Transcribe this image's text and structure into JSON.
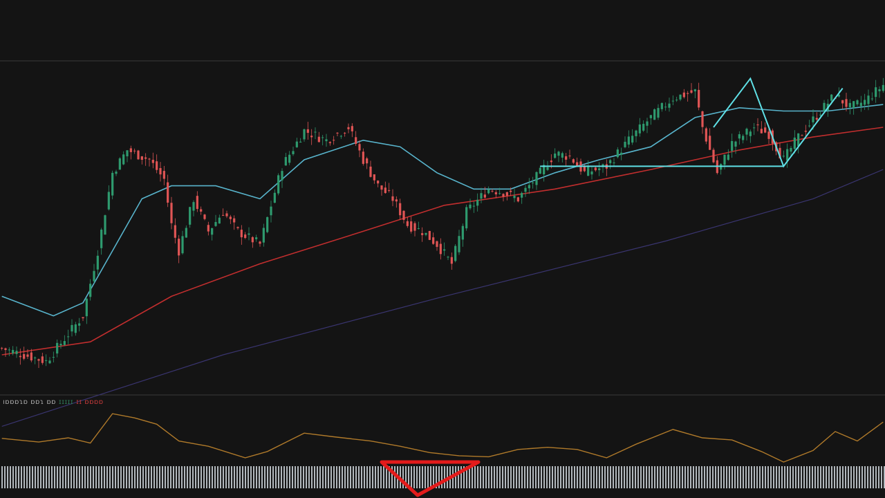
{
  "colors": {
    "background": "#141414",
    "up": "#2e9a6e",
    "down": "#e05555",
    "ma_fast": "#58b4cc",
    "ma_mid": "#c22e2e",
    "ma_slow": "#3a3570",
    "pattern": "#5fe0e6",
    "oscillator": "#b07a2a",
    "divider": "#3a3a3a",
    "volume_bars": "#cfd6dc",
    "marker": "#e31b1b"
  },
  "indicator_legend": {
    "text": "ıɒɒɒɿɒ ɒɒɿ ɒɒ",
    "green_text": "ɪɪɪɪɪ",
    "red_text": "ɪɪ ɒɒɒɒ"
  },
  "chart_data": [
    {
      "type": "candlestick",
      "title": "",
      "xlabel": "",
      "ylabel": "",
      "grid": false,
      "ylim": [
        0,
        100
      ],
      "x_count": 240,
      "price_path": [
        {
          "x": 0,
          "y": 12
        },
        {
          "x": 12,
          "y": 8
        },
        {
          "x": 22,
          "y": 22
        },
        {
          "x": 26,
          "y": 42
        },
        {
          "x": 30,
          "y": 66
        },
        {
          "x": 34,
          "y": 73
        },
        {
          "x": 40,
          "y": 70
        },
        {
          "x": 44,
          "y": 64
        },
        {
          "x": 46,
          "y": 50
        },
        {
          "x": 48,
          "y": 42
        },
        {
          "x": 52,
          "y": 58
        },
        {
          "x": 56,
          "y": 48
        },
        {
          "x": 60,
          "y": 54
        },
        {
          "x": 64,
          "y": 48
        },
        {
          "x": 70,
          "y": 44
        },
        {
          "x": 76,
          "y": 68
        },
        {
          "x": 82,
          "y": 79
        },
        {
          "x": 88,
          "y": 76
        },
        {
          "x": 94,
          "y": 80
        },
        {
          "x": 98,
          "y": 70
        },
        {
          "x": 102,
          "y": 62
        },
        {
          "x": 106,
          "y": 58
        },
        {
          "x": 110,
          "y": 50
        },
        {
          "x": 114,
          "y": 48
        },
        {
          "x": 118,
          "y": 44
        },
        {
          "x": 122,
          "y": 38
        },
        {
          "x": 126,
          "y": 54
        },
        {
          "x": 132,
          "y": 61
        },
        {
          "x": 136,
          "y": 60
        },
        {
          "x": 140,
          "y": 58
        },
        {
          "x": 146,
          "y": 66
        },
        {
          "x": 150,
          "y": 72
        },
        {
          "x": 154,
          "y": 71
        },
        {
          "x": 158,
          "y": 66
        },
        {
          "x": 164,
          "y": 68
        },
        {
          "x": 170,
          "y": 76
        },
        {
          "x": 176,
          "y": 83
        },
        {
          "x": 182,
          "y": 89
        },
        {
          "x": 188,
          "y": 91
        },
        {
          "x": 190,
          "y": 80
        },
        {
          "x": 194,
          "y": 66
        },
        {
          "x": 198,
          "y": 75
        },
        {
          "x": 204,
          "y": 80
        },
        {
          "x": 208,
          "y": 78
        },
        {
          "x": 212,
          "y": 70
        },
        {
          "x": 216,
          "y": 77
        },
        {
          "x": 222,
          "y": 85
        },
        {
          "x": 226,
          "y": 90
        },
        {
          "x": 230,
          "y": 86
        },
        {
          "x": 234,
          "y": 88
        },
        {
          "x": 239,
          "y": 93
        }
      ],
      "series": [
        {
          "type": "line",
          "values": [
            {
              "x": 0,
              "y": 28
            },
            {
              "x": 14,
              "y": 22
            },
            {
              "x": 22,
              "y": 26
            },
            {
              "x": 30,
              "y": 42
            },
            {
              "x": 38,
              "y": 58
            },
            {
              "x": 46,
              "y": 62
            },
            {
              "x": 58,
              "y": 62
            },
            {
              "x": 70,
              "y": 58
            },
            {
              "x": 82,
              "y": 70
            },
            {
              "x": 98,
              "y": 76
            },
            {
              "x": 108,
              "y": 74
            },
            {
              "x": 118,
              "y": 66
            },
            {
              "x": 128,
              "y": 61
            },
            {
              "x": 138,
              "y": 61
            },
            {
              "x": 150,
              "y": 66
            },
            {
              "x": 162,
              "y": 70
            },
            {
              "x": 176,
              "y": 74
            },
            {
              "x": 188,
              "y": 83
            },
            {
              "x": 200,
              "y": 86
            },
            {
              "x": 212,
              "y": 85
            },
            {
              "x": 224,
              "y": 85
            },
            {
              "x": 239,
              "y": 87
            }
          ]
        },
        {
          "type": "line",
          "values": [
            {
              "x": 0,
              "y": 10
            },
            {
              "x": 24,
              "y": 14
            },
            {
              "x": 46,
              "y": 28
            },
            {
              "x": 70,
              "y": 38
            },
            {
              "x": 98,
              "y": 48
            },
            {
              "x": 120,
              "y": 56
            },
            {
              "x": 150,
              "y": 61
            },
            {
              "x": 176,
              "y": 67
            },
            {
              "x": 200,
              "y": 73
            },
            {
              "x": 220,
              "y": 77
            },
            {
              "x": 239,
              "y": 80
            }
          ]
        },
        {
          "type": "line",
          "values": [
            {
              "x": 0,
              "y": -12
            },
            {
              "x": 60,
              "y": 10
            },
            {
              "x": 120,
              "y": 28
            },
            {
              "x": 180,
              "y": 45
            },
            {
              "x": 220,
              "y": 58
            },
            {
              "x": 239,
              "y": 67
            }
          ]
        }
      ],
      "annotations": [
        {
          "type": "polyline",
          "name": "pattern-baseline",
          "values": [
            {
              "x": 146,
              "y": 68
            },
            {
              "x": 212,
              "y": 68
            }
          ]
        },
        {
          "type": "polyline",
          "name": "pattern-zigzag",
          "values": [
            {
              "x": 193,
              "y": 80
            },
            {
              "x": 203,
              "y": 95
            },
            {
              "x": 212,
              "y": 68
            },
            {
              "x": 228,
              "y": 92
            }
          ]
        }
      ]
    },
    {
      "type": "line",
      "title": "",
      "xlabel": "",
      "ylabel": "",
      "grid": false,
      "ylim": [
        0,
        100
      ],
      "series": [
        {
          "type": "line",
          "values": [
            {
              "x": 0,
              "y": 45
            },
            {
              "x": 10,
              "y": 38
            },
            {
              "x": 18,
              "y": 46
            },
            {
              "x": 24,
              "y": 36
            },
            {
              "x": 30,
              "y": 92
            },
            {
              "x": 36,
              "y": 84
            },
            {
              "x": 42,
              "y": 72
            },
            {
              "x": 48,
              "y": 40
            },
            {
              "x": 56,
              "y": 30
            },
            {
              "x": 66,
              "y": 8
            },
            {
              "x": 72,
              "y": 20
            },
            {
              "x": 82,
              "y": 55
            },
            {
              "x": 90,
              "y": 48
            },
            {
              "x": 100,
              "y": 40
            },
            {
              "x": 108,
              "y": 30
            },
            {
              "x": 116,
              "y": 18
            },
            {
              "x": 124,
              "y": 12
            },
            {
              "x": 132,
              "y": 10
            },
            {
              "x": 140,
              "y": 24
            },
            {
              "x": 148,
              "y": 28
            },
            {
              "x": 156,
              "y": 24
            },
            {
              "x": 164,
              "y": 8
            },
            {
              "x": 172,
              "y": 34
            },
            {
              "x": 182,
              "y": 62
            },
            {
              "x": 190,
              "y": 46
            },
            {
              "x": 198,
              "y": 42
            },
            {
              "x": 206,
              "y": 20
            },
            {
              "x": 212,
              "y": 0
            },
            {
              "x": 220,
              "y": 22
            },
            {
              "x": 226,
              "y": 58
            },
            {
              "x": 232,
              "y": 40
            },
            {
              "x": 239,
              "y": 76
            }
          ]
        }
      ]
    }
  ]
}
